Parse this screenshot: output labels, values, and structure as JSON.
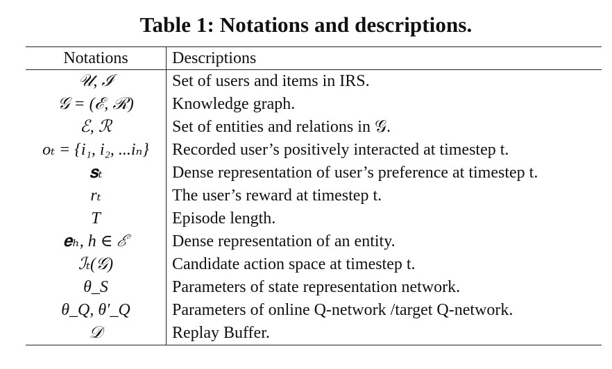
{
  "table": {
    "caption": "Table 1: Notations and descriptions.",
    "headers": {
      "notation": "Notations",
      "description": "Descriptions"
    },
    "rows": [
      {
        "notation": "𝒰, ℐ",
        "description": "Set of users and items in IRS."
      },
      {
        "notation": "𝒢 = (ℰ, ℛ)",
        "description": "Knowledge graph."
      },
      {
        "notation": "ℰ, ℛ",
        "description": "Set of entities and relations in 𝒢."
      },
      {
        "notation": "oₜ = {i₁, i₂, ...iₙ}",
        "description": "Recorded user’s positively interacted at timestep t."
      },
      {
        "notation": "𝐬ₜ",
        "description": "Dense representation of user’s preference at timestep t."
      },
      {
        "notation": "rₜ",
        "description": "The user’s reward at timestep t."
      },
      {
        "notation": "T",
        "description": "Episode length."
      },
      {
        "notation": "𝐞ₕ, h ∈ ℰ",
        "description": "Dense representation of an entity."
      },
      {
        "notation": "ℐₜ(𝒢)",
        "description": "Candidate action space at timestep t."
      },
      {
        "notation": "θ_S",
        "description": "Parameters of state representation network."
      },
      {
        "notation": "θ_Q, θ′_Q",
        "description": "Parameters of online Q-network /target Q-network."
      },
      {
        "notation": "𝒟",
        "description": "Replay Buffer."
      }
    ]
  }
}
